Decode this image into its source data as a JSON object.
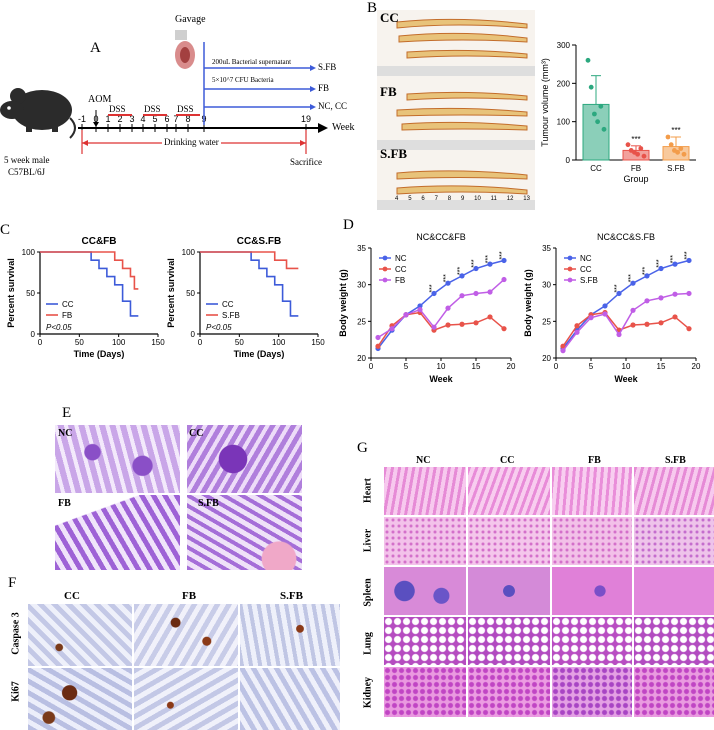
{
  "panels": {
    "A": "A",
    "B": "B",
    "C": "C",
    "D": "D",
    "E": "E",
    "F": "F",
    "G": "G"
  },
  "schematic": {
    "gavage": "Gavage",
    "supernatant": "200uL Bacterial supernatant",
    "cfu": "5×10^7 CFU Bacteria",
    "arrow_sfb": "S.FB",
    "arrow_fb": "FB",
    "arrow_nccc": "NC, CC",
    "aom": "AOM",
    "dss": "DSS",
    "ticks": [
      "-1",
      "0",
      "1",
      "2",
      "3",
      "4",
      "5",
      "6",
      "7",
      "8",
      "9",
      "19"
    ],
    "week": "Week",
    "drinking": "Drinking water",
    "sacrifice": "Sacrifice",
    "mouse_line1": "5 week male",
    "mouse_line2": "C57BL/6J"
  },
  "colon_labels": {
    "cc": "CC",
    "fb": "FB",
    "sfb": "S.FB"
  },
  "ruler_numbers": [
    "4",
    "5",
    "6",
    "7",
    "8",
    "9",
    "10",
    "11",
    "12",
    "13"
  ],
  "tumour_chart": {
    "ylabel": "Tumour volume (mm³)",
    "xlabel": "Group",
    "sig": "***"
  },
  "survival_titles": [
    "CC&FB",
    "CC&S.FB"
  ],
  "survival_common": {
    "ylabel": "Percent survival",
    "xlabel": "Time (Days)",
    "p": "P<0.05"
  },
  "weight_titles": [
    "NC&CC&FB",
    "NC&CC&S.FB"
  ],
  "weight_common": {
    "ylabel": "Body weight (g)",
    "xlabel": "Week",
    "sig": "***"
  },
  "he_labels": {
    "nc": "NC",
    "cc": "CC",
    "fb": "FB",
    "sfb": "S.FB"
  },
  "ihc": {
    "cols": [
      "CC",
      "FB",
      "S.FB"
    ],
    "rows": [
      "Caspase 3",
      "Ki67"
    ]
  },
  "organ": {
    "cols": [
      "NC",
      "CC",
      "FB",
      "S.FB"
    ],
    "rows": [
      "Heart",
      "Liver",
      "Spleen",
      "Lung",
      "Kidney"
    ]
  },
  "chart_data": [
    {
      "type": "bar",
      "title": "",
      "categories": [
        "CC",
        "FB",
        "S.FB"
      ],
      "values": [
        145,
        25,
        35
      ],
      "errors": [
        75,
        12,
        25
      ],
      "points": [
        [
          260,
          190,
          120,
          100,
          140,
          80
        ],
        [
          40,
          25,
          20,
          15,
          30,
          10
        ],
        [
          60,
          40,
          25,
          20,
          30,
          15
        ]
      ],
      "colors": [
        "#2ca87f",
        "#e8534a",
        "#f39c4a"
      ],
      "xlabel": "Group",
      "ylabel": "Tumour volume (mm³)",
      "ylim": [
        0,
        300
      ],
      "yticks": [
        0,
        100,
        200,
        300
      ]
    },
    {
      "type": "line",
      "title": "CC&FB",
      "xlabel": "Time (Days)",
      "ylabel": "Percent survival",
      "xlim": [
        0,
        150
      ],
      "ylim": [
        0,
        100
      ],
      "xticks": [
        0,
        50,
        100,
        150
      ],
      "yticks": [
        0,
        50,
        100
      ],
      "series": [
        {
          "name": "CC",
          "color": "#3d5bd9",
          "x": [
            0,
            65,
            75,
            85,
            95,
            105,
            115,
            125
          ],
          "y": [
            100,
            90,
            80,
            70,
            60,
            40,
            22,
            22
          ]
        },
        {
          "name": "FB",
          "color": "#e8534a",
          "x": [
            0,
            80,
            95,
            105,
            115,
            120,
            125
          ],
          "y": [
            100,
            100,
            90,
            80,
            70,
            55,
            55
          ]
        }
      ]
    },
    {
      "type": "line",
      "title": "CC&S.FB",
      "xlabel": "Time (Days)",
      "ylabel": "Percent survival",
      "xlim": [
        0,
        150
      ],
      "ylim": [
        0,
        100
      ],
      "xticks": [
        0,
        50,
        100,
        150
      ],
      "yticks": [
        0,
        50,
        100
      ],
      "series": [
        {
          "name": "CC",
          "color": "#3d5bd9",
          "x": [
            0,
            65,
            75,
            85,
            95,
            105,
            115,
            125
          ],
          "y": [
            100,
            90,
            80,
            70,
            60,
            40,
            22,
            22
          ]
        },
        {
          "name": "S.FB",
          "color": "#e8534a",
          "x": [
            0,
            95,
            110,
            125
          ],
          "y": [
            100,
            90,
            80,
            80
          ]
        }
      ]
    },
    {
      "type": "line",
      "title": "NC&CC&FB",
      "xlabel": "Week",
      "ylabel": "Body weight (g)",
      "xlim": [
        0,
        20
      ],
      "ylim": [
        20,
        35
      ],
      "xticks": [
        0,
        5,
        10,
        15,
        20
      ],
      "yticks": [
        20,
        25,
        30,
        35
      ],
      "series": [
        {
          "name": "NC",
          "color": "#4a63e8",
          "x": [
            1,
            3,
            5,
            7,
            9,
            11,
            13,
            15,
            17,
            19
          ],
          "y": [
            21.3,
            23.8,
            25.9,
            27.1,
            28.8,
            30.2,
            31.2,
            32.2,
            32.8,
            33.3
          ]
        },
        {
          "name": "CC",
          "color": "#e8534a",
          "x": [
            1,
            3,
            5,
            7,
            9,
            11,
            13,
            15,
            17,
            19
          ],
          "y": [
            21.6,
            24.4,
            25.9,
            26.2,
            23.8,
            24.5,
            24.6,
            24.8,
            25.6,
            24.0
          ]
        },
        {
          "name": "FB",
          "color": "#c05ee6",
          "x": [
            1,
            3,
            5,
            7,
            9,
            11,
            13,
            15,
            17,
            19
          ],
          "y": [
            22.8,
            24.0,
            25.9,
            26.6,
            24.2,
            26.8,
            28.5,
            28.8,
            29.0,
            30.7
          ]
        }
      ]
    },
    {
      "type": "line",
      "title": "NC&CC&S.FB",
      "xlabel": "Week",
      "ylabel": "Body weight (g)",
      "xlim": [
        0,
        20
      ],
      "ylim": [
        20,
        35
      ],
      "xticks": [
        0,
        5,
        10,
        15,
        20
      ],
      "yticks": [
        20,
        25,
        30,
        35
      ],
      "series": [
        {
          "name": "NC",
          "color": "#4a63e8",
          "x": [
            1,
            3,
            5,
            7,
            9,
            11,
            13,
            15,
            17,
            19
          ],
          "y": [
            21.3,
            23.8,
            25.9,
            27.1,
            28.8,
            30.2,
            31.2,
            32.2,
            32.8,
            33.3
          ]
        },
        {
          "name": "CC",
          "color": "#e8534a",
          "x": [
            1,
            3,
            5,
            7,
            9,
            11,
            13,
            15,
            17,
            19
          ],
          "y": [
            21.6,
            24.4,
            25.9,
            26.2,
            23.8,
            24.5,
            24.6,
            24.8,
            25.6,
            24.0
          ]
        },
        {
          "name": "S.FB",
          "color": "#c05ee6",
          "x": [
            1,
            3,
            5,
            7,
            9,
            11,
            13,
            15,
            17,
            19
          ],
          "y": [
            21.0,
            23.5,
            25.5,
            26.0,
            23.2,
            26.5,
            27.8,
            28.2,
            28.7,
            28.8
          ]
        }
      ]
    }
  ]
}
